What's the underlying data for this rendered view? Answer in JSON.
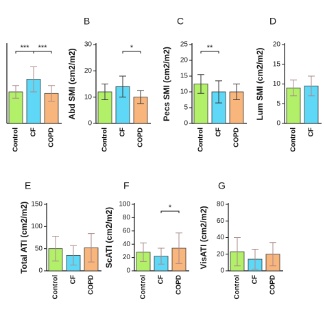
{
  "chart_data": [
    {
      "type": "bar",
      "categories": [
        "Control",
        "CF",
        "COPD"
      ],
      "values": [
        10,
        14,
        9.5
      ],
      "errors": [
        2,
        4,
        2.5
      ],
      "colors": [
        "#b2f06a",
        "#5ed8f6",
        "#f8b57c"
      ],
      "ylim": [
        0,
        25
      ],
      "annotations": [
        "***",
        "***"
      ]
    },
    {
      "type": "bar",
      "title": "B",
      "ylabel": "Abd SMI (cm2/m2)",
      "categories": [
        "Control",
        "CF",
        "COPD"
      ],
      "values": [
        12,
        14,
        10
      ],
      "errors": [
        3,
        4,
        2.5
      ],
      "colors": [
        "#b2f06a",
        "#5ed8f6",
        "#f8b57c"
      ],
      "ylim": [
        0,
        30
      ],
      "yticks": [
        0,
        10,
        20,
        30
      ],
      "annotations": [
        "*"
      ]
    },
    {
      "type": "bar",
      "title": "C",
      "ylabel": "Pecs SMI (cm2/m2)",
      "categories": [
        "Control",
        "CF",
        "COPD"
      ],
      "values": [
        12.5,
        10,
        10
      ],
      "errors": [
        3,
        3.5,
        2.5
      ],
      "colors": [
        "#b2f06a",
        "#5ed8f6",
        "#f8b57c"
      ],
      "ylim": [
        0,
        25
      ],
      "yticks": [
        0,
        5,
        10,
        15,
        20,
        25
      ],
      "annotations": [
        "**"
      ]
    },
    {
      "type": "bar",
      "title": "D",
      "ylabel": "Lum SMI (cm2/m2)",
      "categories": [
        "Control",
        "CF"
      ],
      "values": [
        9,
        9.5
      ],
      "errors": [
        2,
        2.5
      ],
      "colors": [
        "#b2f06a",
        "#5ed8f6"
      ],
      "ylim": [
        0,
        20
      ],
      "yticks": [
        0,
        5,
        10,
        15,
        20
      ]
    },
    {
      "type": "bar",
      "title": "E",
      "ylabel": "Total ATI (cm2/m2)",
      "categories": [
        "Control",
        "CF",
        "COPD"
      ],
      "values": [
        50,
        35,
        52
      ],
      "errors": [
        28,
        22,
        32
      ],
      "colors": [
        "#b2f06a",
        "#5ed8f6",
        "#f8b57c"
      ],
      "ylim": [
        0,
        150
      ],
      "yticks": [
        0,
        50,
        100,
        150
      ]
    },
    {
      "type": "bar",
      "title": "F",
      "ylabel": "ScATI (cm2/m2)",
      "categories": [
        "Control",
        "CF",
        "COPD"
      ],
      "values": [
        28,
        22,
        34
      ],
      "errors": [
        14,
        12,
        23
      ],
      "colors": [
        "#b2f06a",
        "#5ed8f6",
        "#f8b57c"
      ],
      "ylim": [
        0,
        100
      ],
      "yticks": [
        0,
        20,
        40,
        60,
        80,
        100
      ],
      "annotations": [
        "*"
      ]
    },
    {
      "type": "bar",
      "title": "G",
      "ylabel": "VisATI (cm2/m2)",
      "categories": [
        "Control",
        "CF",
        "COPD"
      ],
      "values": [
        23,
        14,
        20
      ],
      "errors": [
        17,
        12,
        14
      ],
      "colors": [
        "#b2f06a",
        "#5ed8f6",
        "#f8b57c"
      ],
      "ylim": [
        0,
        80
      ],
      "yticks": [
        0,
        20,
        40,
        60,
        80
      ]
    }
  ]
}
